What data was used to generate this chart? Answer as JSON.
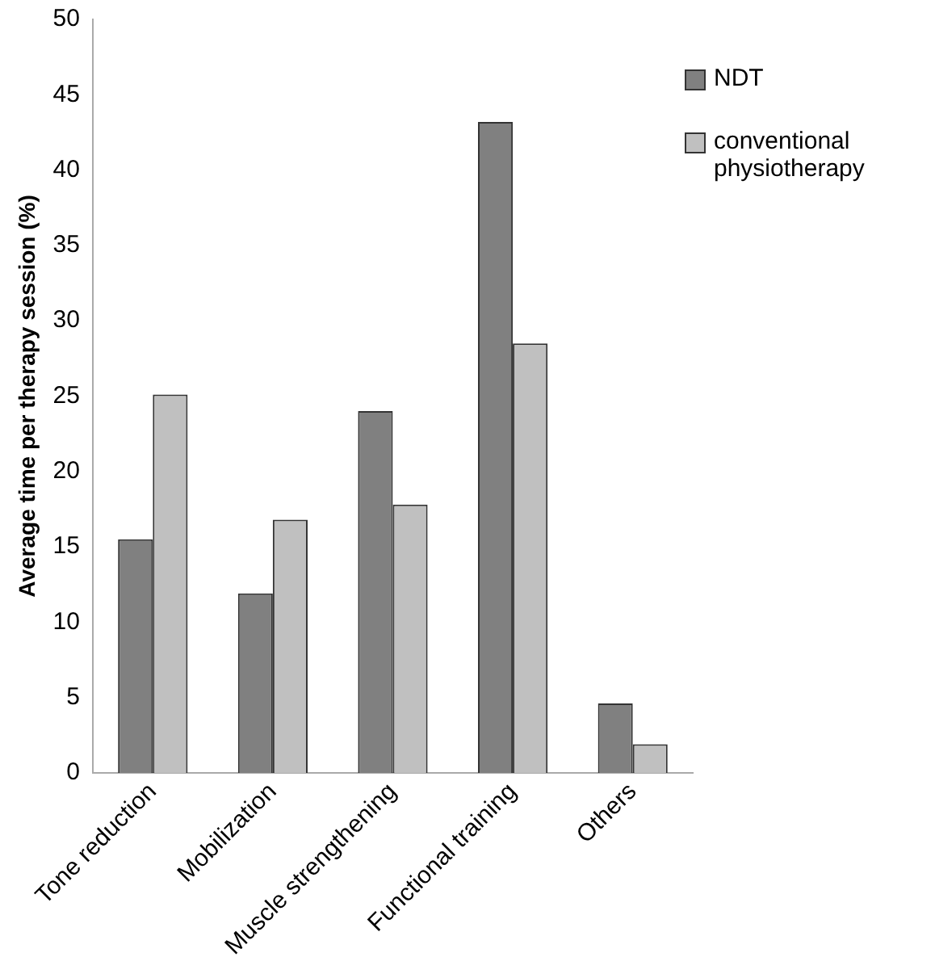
{
  "chart_data": {
    "type": "bar",
    "ylabel": "Average time per therapy session (%)",
    "categories": [
      "Tone reduction",
      "Mobilization",
      "Muscle strengthening",
      "Functional training",
      "Others"
    ],
    "series": [
      {
        "name": "NDT",
        "color": "#808080",
        "values": [
          15.5,
          11.9,
          24.0,
          43.2,
          4.6
        ]
      },
      {
        "name": "conventional physiotherapy",
        "color": "#c0c0c0",
        "values": [
          25.1,
          16.8,
          17.8,
          28.5,
          1.9
        ]
      }
    ],
    "ylim": [
      0,
      50
    ],
    "yticks": [
      0,
      5,
      10,
      15,
      20,
      25,
      30,
      35,
      40,
      45,
      50
    ],
    "grid": false,
    "legend": "top right"
  }
}
